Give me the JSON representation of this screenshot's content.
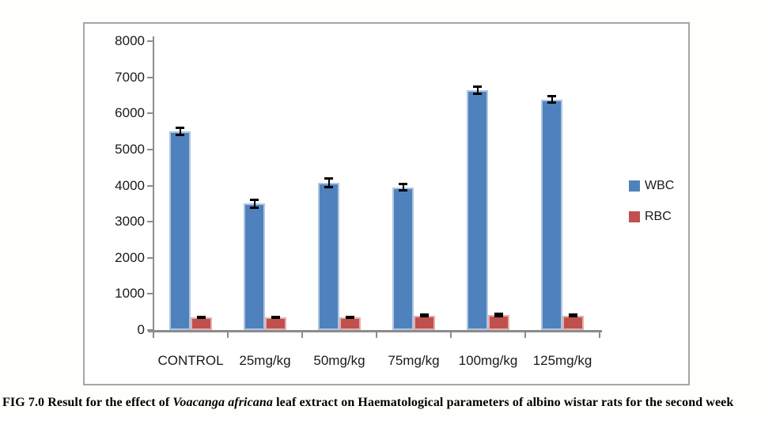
{
  "chart_data": {
    "type": "bar",
    "title": "",
    "xlabel": "",
    "ylabel": "",
    "categories": [
      "CONTROL",
      "25mg/kg",
      "50mg/kg",
      "75mg/kg",
      "100mg/kg",
      "125mg/kg"
    ],
    "series": [
      {
        "name": "WBC",
        "color": "#4f81bd",
        "values": [
          5500,
          3500,
          4080,
          3950,
          6650,
          6380
        ],
        "errors": [
          110,
          120,
          130,
          100,
          110,
          100
        ]
      },
      {
        "name": "RBC",
        "color": "#c0504d",
        "values": [
          350,
          350,
          350,
          400,
          420,
          400
        ],
        "errors": [
          30,
          30,
          30,
          30,
          40,
          30
        ]
      }
    ],
    "ylim": [
      0,
      8000
    ],
    "yticks": [
      0,
      1000,
      2000,
      3000,
      4000,
      5000,
      6000,
      7000,
      8000
    ],
    "grid": false,
    "legend_position": "right",
    "error_bars": true,
    "error_bar_color": "#000000"
  },
  "caption": {
    "prefix": "FIG 7.0 Result for the effect of ",
    "italic": "Voacanga africana",
    "suffix": " leaf extract on Haematological parameters of albino wistar rats for the second week"
  },
  "colors": {
    "axis": "#8c8c8c",
    "frame_border": "#a6a6a6",
    "text": "#1a1a1a",
    "background": "#fefefc"
  }
}
